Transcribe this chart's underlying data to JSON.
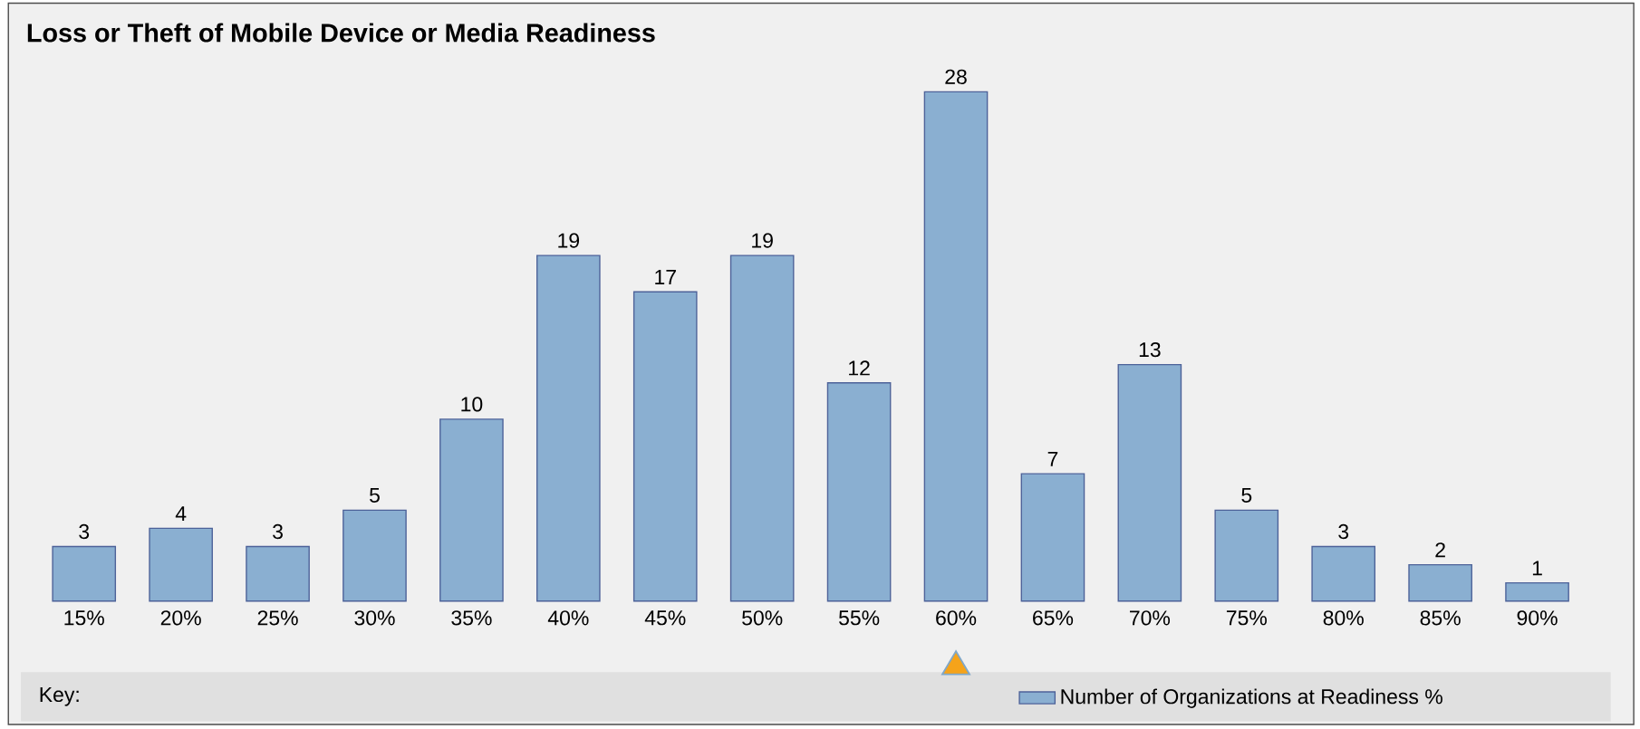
{
  "chart_data": {
    "type": "bar",
    "title": "Loss or Theft of Mobile Device or Media Readiness",
    "categories": [
      "15%",
      "20%",
      "25%",
      "30%",
      "35%",
      "40%",
      "45%",
      "50%",
      "55%",
      "60%",
      "65%",
      "70%",
      "75%",
      "80%",
      "85%",
      "90%"
    ],
    "series": [
      {
        "name": "Number of Organizations at Readiness %",
        "color": "#8aafd1",
        "values": [
          3,
          4,
          3,
          5,
          10,
          19,
          17,
          19,
          12,
          28,
          7,
          13,
          5,
          3,
          2,
          1
        ]
      }
    ],
    "data_labels": true,
    "legend": "bottom",
    "legend_title": "Key:"
  }
}
